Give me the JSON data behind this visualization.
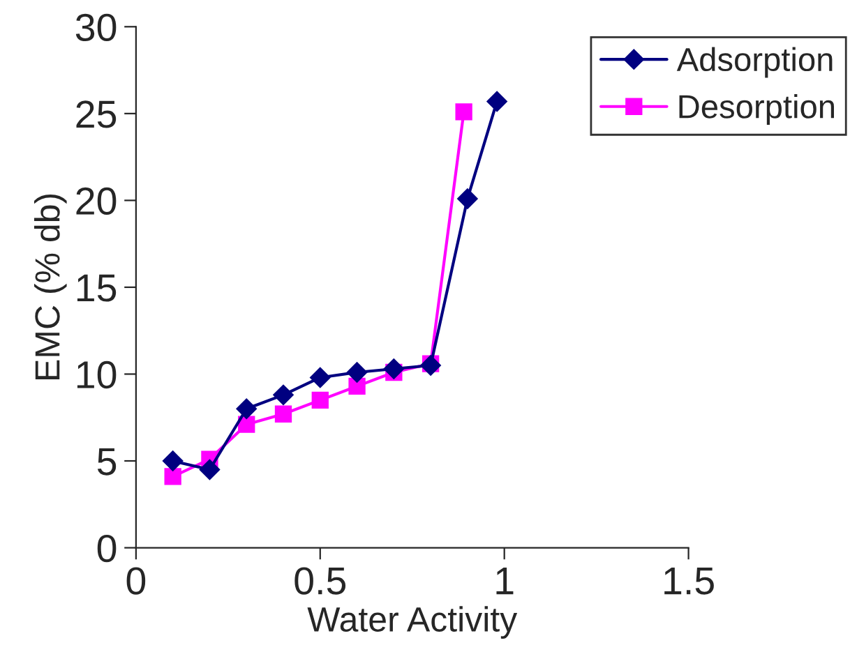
{
  "chart_data": {
    "type": "line",
    "xlabel": "Water Activity",
    "ylabel": "EMC (% db)",
    "xlim": [
      0,
      1.5
    ],
    "xticks": [
      0,
      0.5,
      1,
      1.5
    ],
    "ylim": [
      0,
      30
    ],
    "yticks": [
      0,
      5,
      10,
      15,
      20,
      25,
      30
    ],
    "grid": false,
    "legend": "top right",
    "series": [
      {
        "name": "Adsorption",
        "color": "#000080",
        "marker": "diamond",
        "x": [
          0.1,
          0.2,
          0.3,
          0.4,
          0.5,
          0.6,
          0.7,
          0.8,
          0.9,
          0.98
        ],
        "values": [
          5.0,
          4.5,
          8.0,
          8.8,
          9.8,
          10.1,
          10.3,
          10.5,
          20.1,
          25.7
        ]
      },
      {
        "name": "Desorption",
        "color": "#ff00ff",
        "marker": "square",
        "x": [
          0.1,
          0.2,
          0.3,
          0.4,
          0.5,
          0.6,
          0.7,
          0.8,
          0.89
        ],
        "values": [
          4.1,
          5.1,
          7.1,
          7.7,
          8.5,
          9.3,
          10.1,
          10.6,
          25.1
        ]
      }
    ]
  }
}
